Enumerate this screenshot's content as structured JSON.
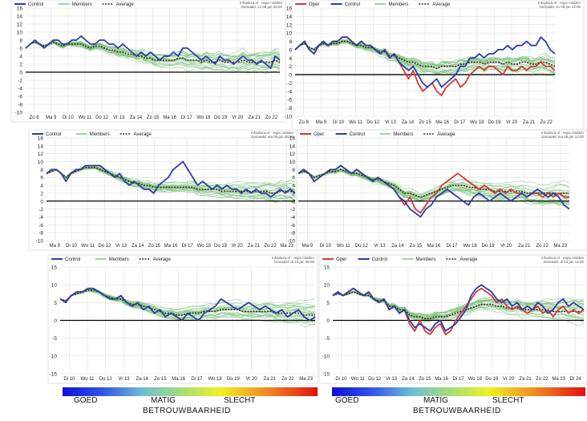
{
  "colors": {
    "member": "#7ec27e",
    "control": "#2e3ca8",
    "oper": "#d23a3a",
    "average": "#3a2a1a",
    "axis": "#000000",
    "grid": "#d6d6d6"
  },
  "chart_data": [
    {
      "type": "line",
      "legend": [
        "Control",
        "Members",
        "Average"
      ],
      "source": "Infoplaza.nl - regio midden",
      "run": "Gemaakt: zo 08 jan 06:00",
      "ylim": [
        -10,
        16
      ],
      "yticks": [
        -10,
        -8,
        -6,
        -4,
        -2,
        0,
        2,
        4,
        6,
        8,
        10,
        12,
        14,
        16
      ],
      "xticks": [
        "Zo 8",
        "Ma 9",
        "Di 10",
        "Wo 11",
        "Do 12",
        "Vr 13",
        "Za 14",
        "Zo 15",
        "Ma 16",
        "Di 17",
        "Wo 18",
        "Do 19",
        "Vr 20",
        "Za 21",
        "Zo 22"
      ],
      "control": [
        6,
        7,
        8,
        7,
        6,
        7,
        8,
        8,
        7,
        7,
        8,
        8,
        9,
        8,
        7,
        7,
        8,
        8,
        7,
        7,
        6,
        7,
        6,
        5,
        4,
        5,
        4,
        5,
        4,
        3,
        4,
        4,
        5,
        4,
        6,
        6,
        5,
        4,
        3,
        4,
        3,
        2,
        4,
        3,
        3,
        2,
        3,
        4,
        3,
        3,
        2,
        3,
        2,
        1,
        4,
        3
      ],
      "average": [
        6,
        7,
        7.5,
        7,
        6.5,
        7,
        7.5,
        7,
        6.5,
        7,
        7,
        7,
        7,
        6.5,
        6,
        6.5,
        6.5,
        6,
        5.5,
        5.5,
        5,
        5,
        4.5,
        4.5,
        4,
        4,
        3.5,
        3.5,
        3,
        3,
        3,
        3,
        3,
        3.5,
        3.5,
        3,
        3,
        3,
        2.5,
        3,
        2.5,
        2.5,
        3,
        2.5,
        2.5,
        2.5,
        2.5,
        3,
        2.5,
        2.5,
        2.5,
        2.5,
        2.5,
        2.5,
        3,
        2.5
      ]
    },
    {
      "type": "line",
      "legend": [
        "Oper",
        "Control",
        "Members",
        "Average"
      ],
      "source": "Infoplaza.nl - regio midden",
      "run": "Gemaakt: zo 08 jan 12:00",
      "ylim": [
        -10,
        16
      ],
      "yticks": [
        -10,
        -8,
        -6,
        -4,
        -2,
        0,
        2,
        4,
        6,
        8,
        10,
        12,
        14,
        16
      ],
      "xticks": [
        "Zo 8",
        "Ma 9",
        "Di 10",
        "Wo 11",
        "Do 12",
        "Vr 13",
        "Za 14",
        "Zo 15",
        "Ma 16",
        "Di 17",
        "Wo 18",
        "Do 19",
        "Vr 20",
        "Za 21",
        "Zo 22"
      ],
      "oper": [
        6,
        7,
        8,
        6,
        5,
        7,
        8,
        7,
        8,
        8,
        9,
        9,
        8,
        7,
        8,
        7,
        7,
        6,
        5,
        6,
        4,
        5,
        3,
        1,
        -1,
        1,
        -2,
        -4,
        -3,
        -2,
        -4,
        -5,
        -3,
        -2,
        -1,
        -3,
        -2,
        0,
        1,
        2,
        1,
        2,
        2,
        1,
        0,
        2,
        1,
        1,
        2,
        1,
        2,
        2,
        3,
        2,
        2,
        1
      ],
      "control": [
        6,
        7,
        8,
        6,
        5,
        7,
        8,
        7,
        8,
        8,
        9,
        9,
        8,
        7,
        8,
        7,
        7,
        6,
        5,
        6,
        4,
        5,
        3,
        2,
        1,
        2,
        0,
        -2,
        -3,
        -2,
        -1,
        -3,
        -2,
        -1,
        0,
        2,
        2,
        4,
        4,
        5,
        4,
        5,
        5,
        6,
        6,
        7,
        6,
        7,
        7,
        8,
        7,
        7,
        9,
        8,
        6,
        5
      ],
      "average": [
        6,
        7,
        7.5,
        6.5,
        6,
        7,
        7.5,
        7,
        7.5,
        7.5,
        8,
        8,
        7.5,
        7,
        7,
        6.5,
        6.5,
        6,
        5.5,
        5.5,
        4.5,
        4.5,
        4,
        3.5,
        3,
        3,
        2.5,
        2,
        2,
        2,
        1.5,
        2,
        2,
        2,
        2,
        2.5,
        2.5,
        3,
        3,
        3,
        2.5,
        3,
        3,
        3,
        2.5,
        3,
        2.5,
        2.5,
        3,
        3,
        2.5,
        2.5,
        3,
        3,
        2.5,
        2
      ]
    },
    {
      "type": "line",
      "legend": [
        "Control",
        "Members",
        "Average"
      ],
      "source": "Infoplaza.nl - regio midden",
      "run": "Gemaakt: ma 09 jan 06:00",
      "ylim": [
        -10,
        16
      ],
      "yticks": [
        -10,
        -8,
        -6,
        -4,
        -2,
        0,
        2,
        4,
        6,
        8,
        10,
        12,
        14,
        16
      ],
      "xticks": [
        "Ma 9",
        "Di 10",
        "Wo 11",
        "Do 12",
        "Vr 13",
        "Za 14",
        "Zo 15",
        "Ma 16",
        "Di 17",
        "Wo 18",
        "Do 19",
        "Vr 20",
        "Za 21",
        "Zo 22",
        "Ma 23"
      ],
      "control": [
        7,
        8,
        8,
        7,
        5,
        7,
        8,
        8,
        9,
        9,
        9,
        9,
        8,
        7,
        6,
        7,
        5,
        4,
        5,
        4,
        3,
        3,
        2,
        4,
        5,
        6,
        8,
        9,
        10,
        8,
        6,
        4,
        5,
        4,
        3,
        4,
        3,
        4,
        3,
        3,
        2,
        3,
        2,
        3,
        2,
        2,
        1,
        2,
        3,
        2,
        3,
        2
      ],
      "average": [
        7,
        7.5,
        8,
        7,
        6,
        7,
        7.5,
        8,
        8.5,
        8.5,
        8.5,
        8,
        7.5,
        7,
        6.5,
        6,
        5.5,
        5,
        4.5,
        4.5,
        4,
        4,
        3.5,
        3.5,
        3.5,
        3.5,
        3.5,
        3.5,
        3.5,
        3.5,
        3.5,
        3,
        3,
        3,
        3,
        3,
        2.5,
        2.5,
        2.5,
        2.5,
        2.5,
        2.5,
        2.5,
        2.5,
        2.5,
        2.5,
        2,
        2,
        2.5,
        2.5,
        2.5,
        2
      ]
    },
    {
      "type": "line",
      "legend": [
        "Oper",
        "Control",
        "Members",
        "Average"
      ],
      "source": "Infoplaza.nl - regio midden",
      "run": "Gemaakt: ma 09 jan 12:00",
      "ylim": [
        -10,
        16
      ],
      "yticks": [
        -10,
        -8,
        -6,
        -4,
        -2,
        0,
        2,
        4,
        6,
        8,
        10,
        12,
        14,
        16
      ],
      "xticks": [
        "Ma 9",
        "Di 10",
        "Wo 11",
        "Do 12",
        "Vr 13",
        "Za 14",
        "Zo 15",
        "Ma 16",
        "Di 17",
        "Wo 18",
        "Do 19",
        "Vr 20",
        "Za 21",
        "Zo 22",
        "Ma 23"
      ],
      "oper": [
        7,
        8,
        7,
        5,
        6,
        7,
        8,
        8,
        9,
        8,
        7,
        8,
        7,
        6,
        5,
        6,
        5,
        4,
        3,
        1,
        -1,
        1,
        -2,
        -3,
        -1,
        1,
        2,
        4,
        5,
        6,
        7,
        6,
        5,
        4,
        3,
        4,
        3,
        2,
        3,
        2,
        3,
        2,
        2,
        1,
        2,
        2,
        1,
        2,
        1,
        2,
        1,
        1
      ],
      "control": [
        7,
        8,
        7,
        5,
        6,
        7,
        8,
        8,
        9,
        8,
        7,
        8,
        7,
        6,
        5,
        6,
        5,
        4,
        3,
        1,
        0,
        -2,
        -3,
        -4,
        -2,
        -1,
        1,
        2,
        3,
        2,
        1,
        0,
        -1,
        1,
        2,
        1,
        0,
        1,
        2,
        1,
        0,
        1,
        2,
        1,
        2,
        3,
        2,
        1,
        2,
        1,
        -1,
        -2
      ],
      "average": [
        7,
        7.5,
        7,
        6,
        6.5,
        7,
        7.5,
        7.5,
        8,
        7.5,
        7,
        7,
        6.5,
        6,
        5.5,
        5.5,
        5,
        4.5,
        4,
        3,
        2,
        2,
        1.5,
        1,
        1.5,
        2,
        2.5,
        3,
        3.5,
        4,
        4,
        4,
        3.5,
        3.5,
        3,
        3,
        3,
        2.5,
        2.5,
        2.5,
        2.5,
        2.5,
        2.5,
        2,
        2,
        2,
        2,
        2,
        2,
        2,
        2,
        2
      ]
    },
    {
      "type": "line",
      "legend": [
        "Control",
        "Members",
        "Average"
      ],
      "source": "Infoplaza.nl - regio midden",
      "run": "Gemaakt: di 10 jan 06:00",
      "ylim": [
        -15,
        15
      ],
      "yticks": [
        -15,
        -10,
        -5,
        0,
        5,
        10,
        15
      ],
      "xticks": [
        "Di 10",
        "Wo 11",
        "Do 12",
        "Vr 13",
        "Za 14",
        "Zo 15",
        "Ma 16",
        "Di 17",
        "Wo 18",
        "Do 19",
        "Vr 20",
        "Za 21",
        "Zo 22",
        "Ma 23"
      ],
      "control": [
        6,
        5,
        7,
        8,
        8,
        9,
        9,
        8,
        7,
        6,
        6,
        7,
        5,
        4,
        5,
        3,
        4,
        2,
        3,
        1,
        2,
        1,
        0,
        2,
        1,
        0,
        2,
        3,
        4,
        6,
        5,
        4,
        3,
        4,
        5,
        4,
        3,
        4,
        3,
        2,
        3,
        1,
        2,
        3,
        1,
        0,
        1
      ],
      "average": [
        6,
        5.5,
        7,
        7.5,
        8,
        8.5,
        8.5,
        8,
        7,
        6.5,
        6,
        6,
        5,
        4.5,
        4.5,
        4,
        3.5,
        3,
        2.5,
        2,
        2,
        1.5,
        1.5,
        2,
        2,
        2,
        2.5,
        2.5,
        2.5,
        3,
        3,
        3,
        3,
        2.5,
        2.5,
        2.5,
        2.5,
        2.5,
        2.5,
        2,
        2,
        2,
        2,
        2,
        1.5,
        1.5,
        1.5
      ]
    },
    {
      "type": "line",
      "legend": [
        "Oper",
        "Control",
        "Members",
        "Average"
      ],
      "source": "Infoplaza.nl - regio midden",
      "run": "Gemaakt: di 10 jan 12:00",
      "ylim": [
        -15,
        15
      ],
      "yticks": [
        -15,
        -10,
        -5,
        0,
        5,
        10,
        15
      ],
      "xticks": [
        "Di 10",
        "Wo 11",
        "Do 12",
        "Vr 13",
        "Za 14",
        "Zo 15",
        "Ma 16",
        "Di 17",
        "Wo 18",
        "Do 19",
        "Vr 20",
        "Za 21",
        "Zo 22",
        "Ma 23",
        "Di 24"
      ],
      "oper": [
        7,
        8,
        7,
        8,
        9,
        8,
        7,
        8,
        6,
        5,
        6,
        3,
        4,
        2,
        3,
        -1,
        -3,
        0,
        -3,
        -4,
        -2,
        -1,
        -4,
        -3,
        0,
        2,
        4,
        6,
        8,
        9,
        8,
        7,
        5,
        6,
        4,
        3,
        4,
        3,
        2,
        3,
        4,
        2,
        3,
        1,
        3,
        4,
        2,
        3,
        2,
        3
      ],
      "control": [
        7,
        8,
        7,
        8,
        9,
        8,
        7,
        8,
        6,
        5,
        6,
        3,
        4,
        2,
        3,
        0,
        -2,
        -1,
        -2,
        -3,
        -1,
        0,
        -3,
        -2,
        -1,
        1,
        3,
        7,
        9,
        10,
        9,
        8,
        6,
        5,
        6,
        4,
        5,
        3,
        4,
        3,
        5,
        4,
        2,
        3,
        5,
        6,
        4,
        5,
        4,
        3
      ],
      "average": [
        7,
        7.5,
        7,
        7.5,
        8,
        7.5,
        7,
        7,
        6,
        5.5,
        5.5,
        4,
        4,
        3,
        3,
        1.5,
        1,
        1,
        0.5,
        0.5,
        1,
        1,
        1,
        1.5,
        2,
        2.5,
        3,
        3.5,
        4,
        4.5,
        4.5,
        4.5,
        4,
        4,
        3.5,
        3.5,
        3.5,
        3,
        3,
        3,
        3,
        3,
        3,
        2.5,
        2.5,
        2.5,
        2.5,
        2.5,
        2.5,
        2.5
      ]
    }
  ],
  "reliability_legend": [
    {
      "labels": {
        "good": "GOED",
        "medium": "MATIG",
        "bad": "SLECHT"
      },
      "title": "BETROUWBAARHEID"
    },
    {
      "labels": {
        "good": "GOED",
        "medium": "MATIG",
        "bad": "SLECHT"
      },
      "title": "BETROUWBAARHEID"
    }
  ]
}
